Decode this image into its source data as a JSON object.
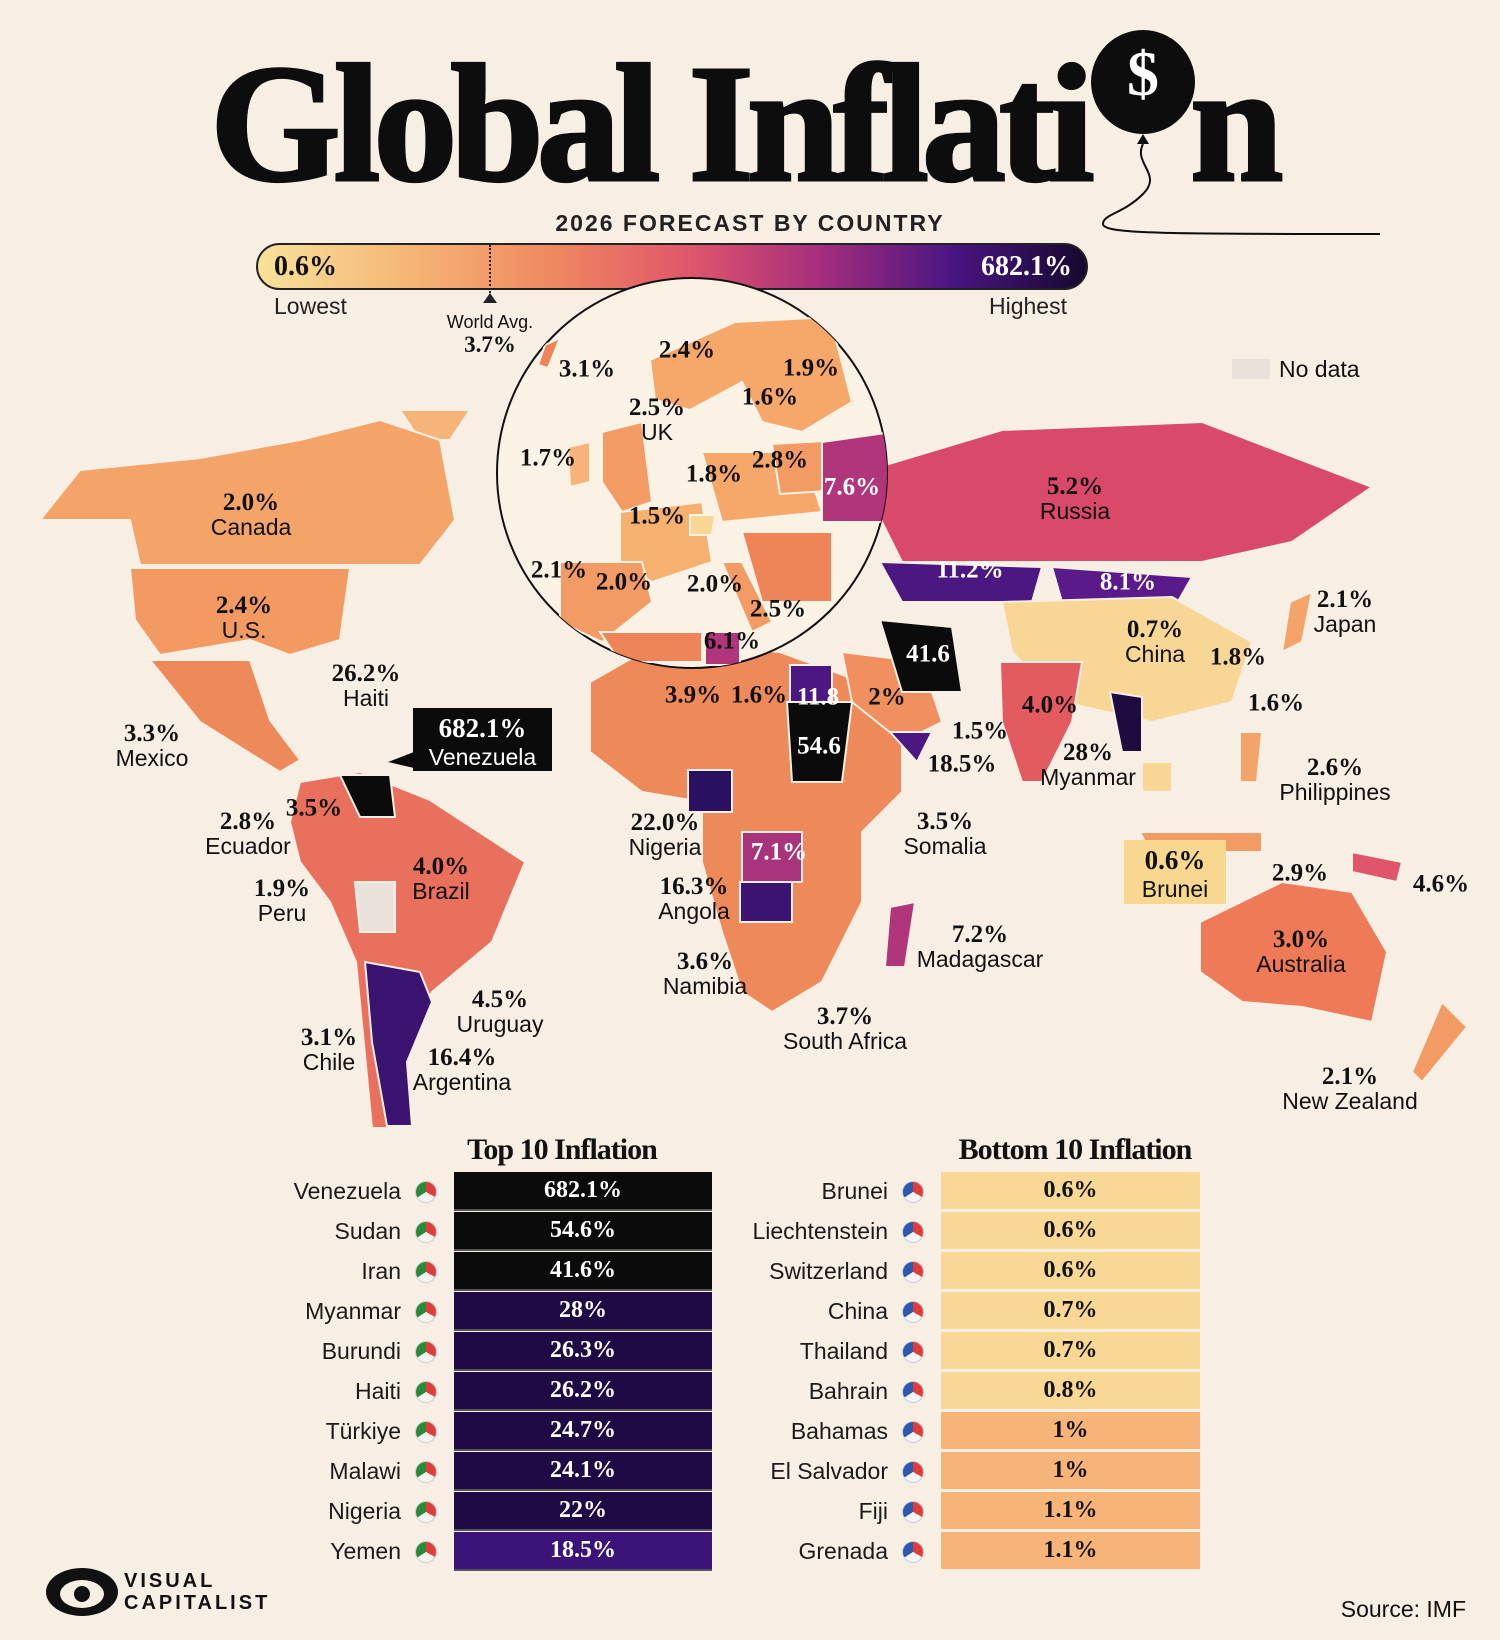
{
  "header": {
    "title_part1": "Global Inflati",
    "title_part2": "n",
    "balloon_symbol": "$",
    "subtitle": "2026 FORECAST BY COUNTRY"
  },
  "legend": {
    "lowest_value": "0.6%",
    "lowest_label": "Lowest",
    "highest_value": "682.1%",
    "highest_label": "Highest",
    "world_avg_label": "World Avg.",
    "world_avg_value": "3.7%",
    "no_data_label": "No data"
  },
  "colors": {
    "lowest": "#f7e29a",
    "mid": "#e0566a",
    "high": "#4a1582",
    "highest": "#16082e",
    "no_data": "#e9e2da",
    "background": "#f8efe4"
  },
  "map": {
    "labels": [
      {
        "value": "2.0%",
        "name": "Canada"
      },
      {
        "value": "2.4%",
        "name": "U.S."
      },
      {
        "value": "26.2%",
        "name": "Haiti"
      },
      {
        "value": "3.3%",
        "name": "Mexico"
      },
      {
        "value": "2.8%",
        "name": "Ecuador"
      },
      {
        "value": "3.5%"
      },
      {
        "value": "1.9%",
        "name": "Peru"
      },
      {
        "value": "4.0%",
        "name": "Brazil"
      },
      {
        "value": "4.5%",
        "name": "Uruguay"
      },
      {
        "value": "3.1%",
        "name": "Chile"
      },
      {
        "value": "16.4%",
        "name": "Argentina"
      },
      {
        "value": "22.0%",
        "name": "Nigeria"
      },
      {
        "value": "16.3%",
        "name": "Angola"
      },
      {
        "value": "3.6%",
        "name": "Namibia"
      },
      {
        "value": "3.7%",
        "name": "South Africa"
      },
      {
        "value": "3.5%",
        "name": "Somalia"
      },
      {
        "value": "7.2%",
        "name": "Madagascar"
      },
      {
        "value": "7.1%"
      },
      {
        "value": "3.9%"
      },
      {
        "value": "1.6%"
      },
      {
        "value": "11.8"
      },
      {
        "value": "54.6"
      },
      {
        "value": "2%"
      },
      {
        "value": "41.6"
      },
      {
        "value": "1.5%"
      },
      {
        "value": "18.5%"
      },
      {
        "value": "5.2%",
        "name": "Russia"
      },
      {
        "value": "11.2%"
      },
      {
        "value": "8.1%"
      },
      {
        "value": "0.7%",
        "name": "China"
      },
      {
        "value": "1.8%"
      },
      {
        "value": "2.1%",
        "name": "Japan"
      },
      {
        "value": "1.6%"
      },
      {
        "value": "4.0%"
      },
      {
        "value": "28%",
        "name": "Myanmar"
      },
      {
        "value": "2.6%",
        "name": "Philippines"
      },
      {
        "value": "2.9%"
      },
      {
        "value": "4.6%"
      },
      {
        "value": "3.0%",
        "name": "Australia"
      },
      {
        "value": "2.1%",
        "name": "New Zealand"
      },
      {
        "value": "3.1%"
      },
      {
        "value": "2.4%"
      },
      {
        "value": "1.9%"
      },
      {
        "value": "1.6%"
      },
      {
        "value": "2.5%",
        "name": "UK"
      },
      {
        "value": "1.7%"
      },
      {
        "value": "1.8%"
      },
      {
        "value": "2.8%"
      },
      {
        "value": "7.6%"
      },
      {
        "value": "1.5%"
      },
      {
        "value": "2.1%"
      },
      {
        "value": "2.0%"
      },
      {
        "value": "2.0%"
      },
      {
        "value": "2.5%"
      },
      {
        "value": "6.1%"
      }
    ],
    "venezuela_callout": {
      "value": "682.1%",
      "name": "Venezuela"
    },
    "brunei_callout": {
      "value": "0.6%",
      "name": "Brunei"
    }
  },
  "top10": {
    "title": "Top 10 Inflation",
    "rows": [
      {
        "country": "Venezuela",
        "value": "682.1%",
        "color": "#0b0b0b"
      },
      {
        "country": "Sudan",
        "value": "54.6%",
        "color": "#0b0b0b"
      },
      {
        "country": "Iran",
        "value": "41.6%",
        "color": "#0b0b0b"
      },
      {
        "country": "Myanmar",
        "value": "28%",
        "color": "#1e0b45"
      },
      {
        "country": "Burundi",
        "value": "26.3%",
        "color": "#1e0b45"
      },
      {
        "country": "Haiti",
        "value": "26.2%",
        "color": "#1e0b45"
      },
      {
        "country": "Türkiye",
        "value": "24.7%",
        "color": "#1e0b45"
      },
      {
        "country": "Malawi",
        "value": "24.1%",
        "color": "#1e0b45"
      },
      {
        "country": "Nigeria",
        "value": "22%",
        "color": "#1e0b45"
      },
      {
        "country": "Yemen",
        "value": "18.5%",
        "color": "#3a1478"
      }
    ]
  },
  "bottom10": {
    "title": "Bottom 10 Inflation",
    "rows": [
      {
        "country": "Brunei",
        "value": "0.6%",
        "color": "#f8d894"
      },
      {
        "country": "Liechtenstein",
        "value": "0.6%",
        "color": "#f8d894"
      },
      {
        "country": "Switzerland",
        "value": "0.6%",
        "color": "#f8d894"
      },
      {
        "country": "China",
        "value": "0.7%",
        "color": "#f8d894"
      },
      {
        "country": "Thailand",
        "value": "0.7%",
        "color": "#f8d894"
      },
      {
        "country": "Bahrain",
        "value": "0.8%",
        "color": "#f8d894"
      },
      {
        "country": "Bahamas",
        "value": "1%",
        "color": "#f6b478"
      },
      {
        "country": "El Salvador",
        "value": "1%",
        "color": "#f6b478"
      },
      {
        "country": "Fiji",
        "value": "1.1%",
        "color": "#f6b478"
      },
      {
        "country": "Grenada",
        "value": "1.1%",
        "color": "#f6b478"
      }
    ]
  },
  "footer": {
    "logo_line1": "VISUAL",
    "logo_line2": "CAPITALIST",
    "source": "Source: IMF"
  }
}
